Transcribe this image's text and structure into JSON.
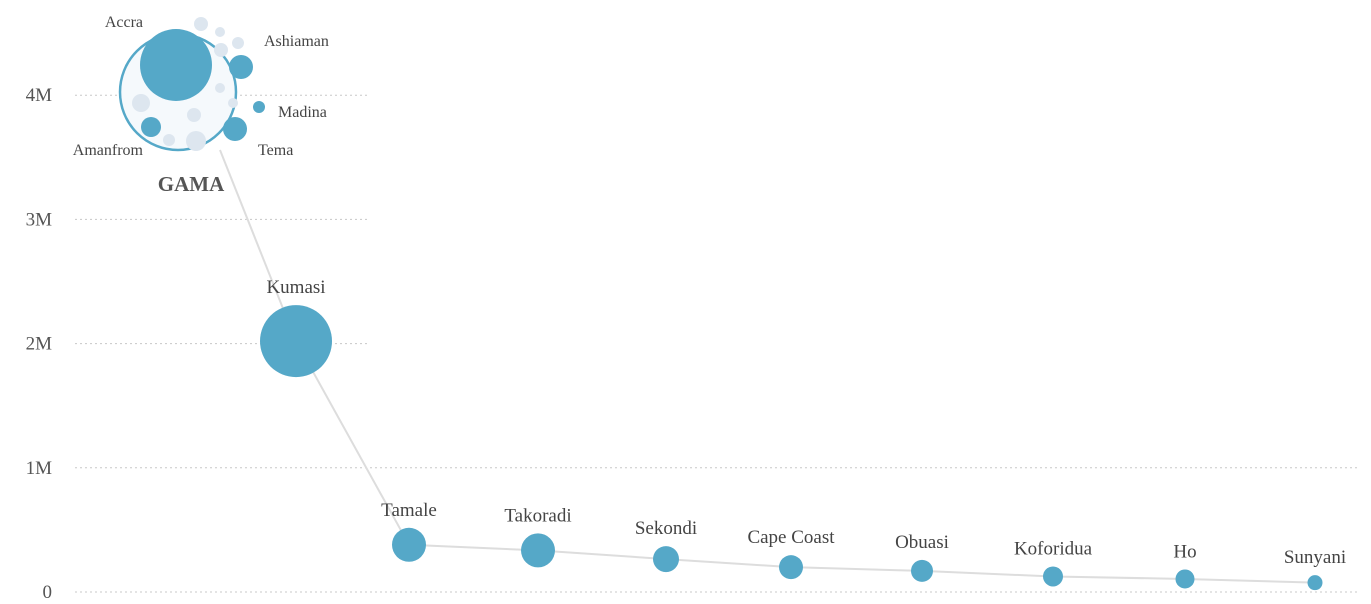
{
  "chart_data": {
    "type": "scatter",
    "title": "",
    "xlabel": "",
    "ylabel": "",
    "ylim": [
      0,
      4800000
    ],
    "yticks": [
      {
        "value": 0,
        "label": "0"
      },
      {
        "value": 1000000,
        "label": "1M"
      },
      {
        "value": 2000000,
        "label": "2M"
      },
      {
        "value": 3000000,
        "label": "3M"
      },
      {
        "value": 4000000,
        "label": "4M"
      }
    ],
    "grid": true,
    "points": [
      {
        "name": "Kumasi",
        "value": 2020000
      },
      {
        "name": "Tamale",
        "value": 380000
      },
      {
        "name": "Takoradi",
        "value": 335000
      },
      {
        "name": "Sekondi",
        "value": 265000
      },
      {
        "name": "Cape Coast",
        "value": 200000
      },
      {
        "name": "Obuasi",
        "value": 170000
      },
      {
        "name": "Koforidua",
        "value": 125000
      },
      {
        "name": "Ho",
        "value": 105000
      },
      {
        "name": "Sunyani",
        "value": 75000
      }
    ],
    "group": {
      "name": "GAMA",
      "value": 4200000,
      "members": [
        {
          "name": "Accra",
          "labeled": true
        },
        {
          "name": "Ashiaman",
          "labeled": true
        },
        {
          "name": "Madina",
          "labeled": true
        },
        {
          "name": "Tema",
          "labeled": true
        },
        {
          "name": "Amanfrom",
          "labeled": true
        }
      ]
    },
    "colors": {
      "bubble": "#55a8c8",
      "bubble_light": "#dde6ef",
      "group_fill": "#f5f9fc",
      "group_stroke": "#55a8c8",
      "line": "#dddddd",
      "grid": "#c8c8c8"
    }
  }
}
